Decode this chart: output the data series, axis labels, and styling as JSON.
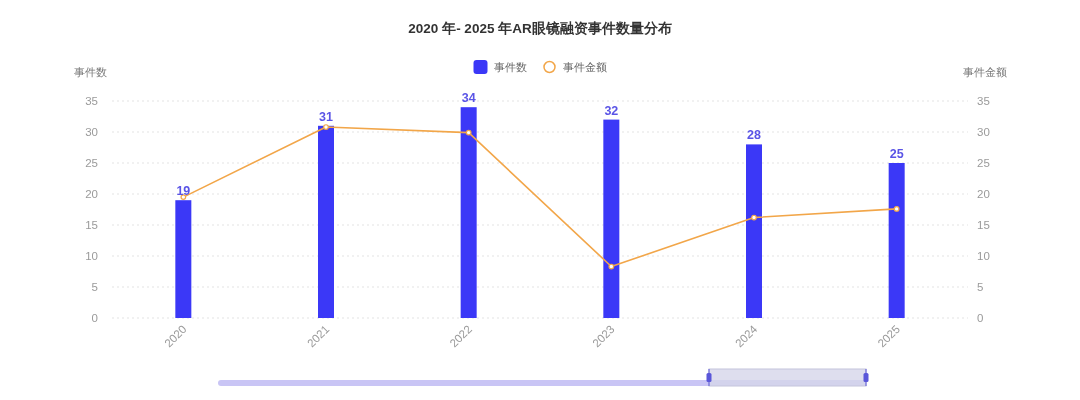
{
  "chart_data": {
    "type": "bar",
    "title": "2020 年- 2025 年AR眼镜融资事件数量分布",
    "categories": [
      "2020",
      "2021",
      "2022",
      "2023",
      "2024",
      "2025"
    ],
    "ylabel": "事件数",
    "y2label": "事件金额",
    "series": [
      {
        "name": "事件数",
        "color": "#3b38f7",
        "values": [
          19,
          31,
          34,
          32,
          28,
          25
        ],
        "value_labels": [
          "19",
          "31",
          "34",
          "32",
          "28",
          "25"
        ]
      },
      {
        "name": "事件金额",
        "type": "line",
        "axis": "y2",
        "color": "#f2a649",
        "marker": "circle",
        "values": [
          19.5,
          30.8,
          29.9,
          8.3,
          16.2,
          17.6
        ]
      }
    ],
    "ylim": [
      0,
      35
    ],
    "yticks": [
      0,
      5,
      10,
      15,
      20,
      25,
      30,
      35
    ],
    "y2lim": [
      0,
      35
    ],
    "y2ticks": [
      0,
      5,
      10,
      15,
      20,
      25,
      30,
      35
    ],
    "grid": "y",
    "legend": "top"
  }
}
